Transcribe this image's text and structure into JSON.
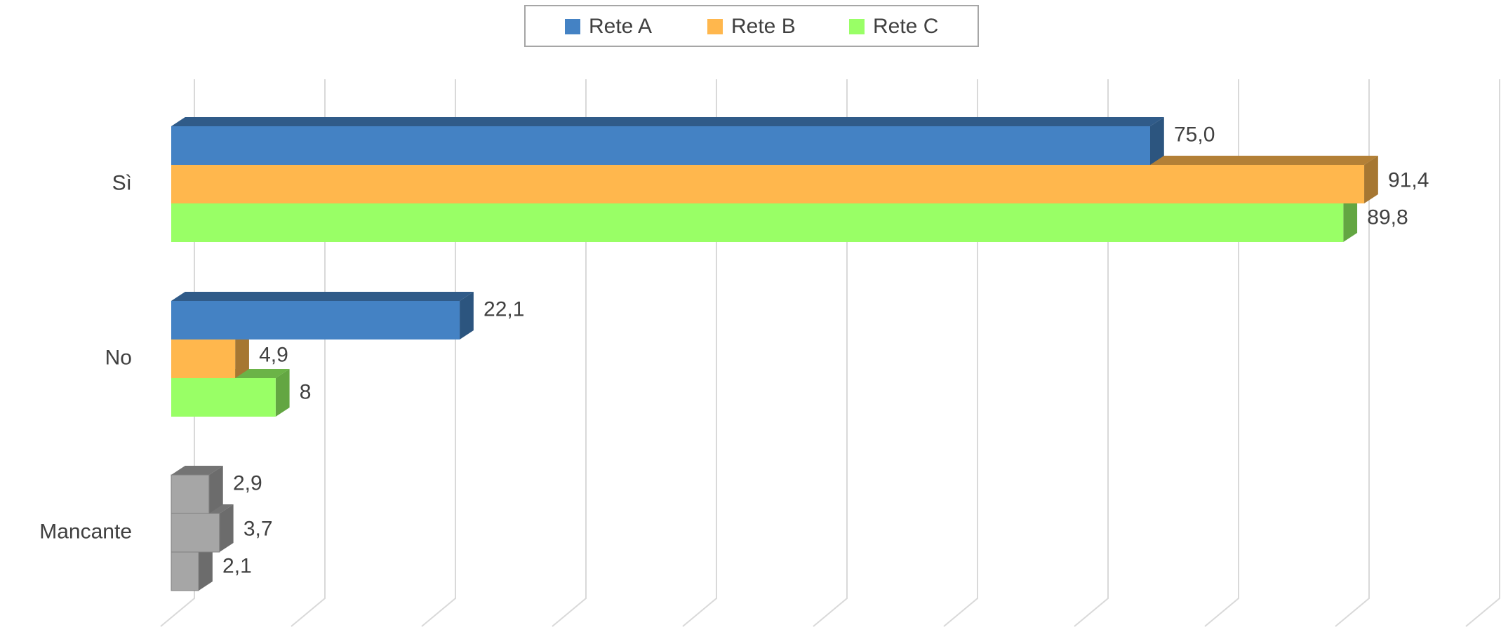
{
  "chart_data": {
    "type": "bar3d_horizontal",
    "categories": [
      "Sì",
      "No",
      "Mancante"
    ],
    "series": [
      {
        "name": "Rete A",
        "color": "#4482c4",
        "colors": [
          "#4482c4",
          "#4482c4",
          "#a6a6a6"
        ],
        "values": [
          75.0,
          22.1,
          2.9
        ],
        "value_labels": [
          "75,0",
          "22,1",
          "2,9"
        ]
      },
      {
        "name": "Rete B",
        "color": "#ffb74d",
        "colors": [
          "#ffb74d",
          "#ffb74d",
          "#a6a6a6"
        ],
        "values": [
          91.4,
          4.9,
          3.7
        ],
        "value_labels": [
          "91,4",
          "4,9",
          "3,7"
        ]
      },
      {
        "name": "Rete C",
        "color": "#99ff66",
        "colors": [
          "#99ff66",
          "#99ff66",
          "#a6a6a6"
        ],
        "values": [
          89.8,
          8,
          2.1
        ],
        "value_labels": [
          "89,8",
          "8",
          "2,1"
        ]
      }
    ],
    "xlim": [
      0,
      100
    ],
    "xticks": [
      0,
      10,
      20,
      30,
      40,
      50,
      60,
      70,
      80,
      90,
      100
    ],
    "grid": true,
    "legend": "top"
  }
}
